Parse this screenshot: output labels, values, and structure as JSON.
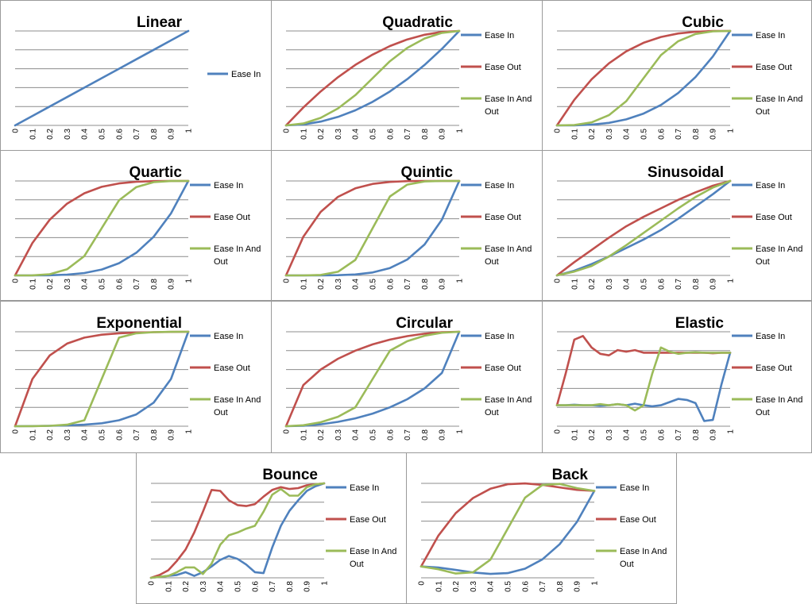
{
  "colors": {
    "ease_in": "#4f81bd",
    "ease_out": "#c0504d",
    "ease_in_out": "#9bbb59",
    "grid": "#8c8c8c"
  },
  "chart_data": [
    {
      "type": "line",
      "title": "Linear",
      "ylim": [
        0,
        1
      ],
      "grid": true,
      "legend": "right",
      "x": [
        0,
        0.1,
        0.2,
        0.3,
        0.4,
        0.5,
        0.6,
        0.7,
        0.8,
        0.9,
        1
      ],
      "series": [
        {
          "name": "Ease In",
          "values": [
            0,
            0.1,
            0.2,
            0.3,
            0.4,
            0.5,
            0.6,
            0.7,
            0.8,
            0.9,
            1
          ]
        }
      ]
    },
    {
      "type": "line",
      "title": "Quadratic",
      "ylim": [
        0,
        1
      ],
      "grid": true,
      "legend": "right",
      "x": [
        0,
        0.1,
        0.2,
        0.3,
        0.4,
        0.5,
        0.6,
        0.7,
        0.8,
        0.9,
        1
      ],
      "series": [
        {
          "name": "Ease In",
          "values": [
            0,
            0.01,
            0.04,
            0.09,
            0.16,
            0.25,
            0.36,
            0.49,
            0.64,
            0.81,
            1
          ]
        },
        {
          "name": "Ease Out",
          "values": [
            0,
            0.19,
            0.36,
            0.51,
            0.64,
            0.75,
            0.84,
            0.91,
            0.96,
            0.99,
            1
          ]
        },
        {
          "name": "Ease In And Out",
          "values": [
            0,
            0.02,
            0.08,
            0.18,
            0.32,
            0.5,
            0.68,
            0.82,
            0.92,
            0.98,
            1
          ]
        }
      ]
    },
    {
      "type": "line",
      "title": "Cubic",
      "ylim": [
        0,
        1
      ],
      "grid": true,
      "legend": "right",
      "x": [
        0,
        0.1,
        0.2,
        0.3,
        0.4,
        0.5,
        0.6,
        0.7,
        0.8,
        0.9,
        1
      ],
      "series": [
        {
          "name": "Ease In",
          "values": [
            0,
            0.001,
            0.008,
            0.027,
            0.064,
            0.125,
            0.216,
            0.343,
            0.512,
            0.729,
            1
          ]
        },
        {
          "name": "Ease Out",
          "values": [
            0,
            0.271,
            0.488,
            0.657,
            0.784,
            0.875,
            0.936,
            0.973,
            0.992,
            0.999,
            1
          ]
        },
        {
          "name": "Ease In And Out",
          "values": [
            0,
            0.004,
            0.032,
            0.108,
            0.256,
            0.5,
            0.744,
            0.892,
            0.968,
            0.996,
            1
          ]
        }
      ]
    },
    {
      "type": "line",
      "title": "Quartic",
      "ylim": [
        0,
        1
      ],
      "grid": true,
      "legend": "right",
      "x": [
        0,
        0.1,
        0.2,
        0.3,
        0.4,
        0.5,
        0.6,
        0.7,
        0.8,
        0.9,
        1
      ],
      "series": [
        {
          "name": "Ease In",
          "values": [
            0,
            0.0001,
            0.0016,
            0.0081,
            0.0256,
            0.0625,
            0.1296,
            0.2401,
            0.4096,
            0.6561,
            1
          ]
        },
        {
          "name": "Ease Out",
          "values": [
            0,
            0.344,
            0.59,
            0.76,
            0.87,
            0.938,
            0.974,
            0.992,
            0.998,
            1,
            1
          ]
        },
        {
          "name": "Ease In And Out",
          "values": [
            0,
            0.001,
            0.013,
            0.065,
            0.205,
            0.5,
            0.795,
            0.935,
            0.987,
            0.999,
            1
          ]
        }
      ]
    },
    {
      "type": "line",
      "title": "Quintic",
      "ylim": [
        0,
        1
      ],
      "grid": true,
      "legend": "right",
      "x": [
        0,
        0.1,
        0.2,
        0.3,
        0.4,
        0.5,
        0.6,
        0.7,
        0.8,
        0.9,
        1
      ],
      "series": [
        {
          "name": "Ease In",
          "values": [
            0,
            0,
            0.0003,
            0.0024,
            0.0102,
            0.0313,
            0.0778,
            0.1681,
            0.3277,
            0.5905,
            1
          ]
        },
        {
          "name": "Ease Out",
          "values": [
            0,
            0.41,
            0.672,
            0.832,
            0.922,
            0.969,
            0.99,
            0.998,
            1,
            1,
            1
          ]
        },
        {
          "name": "Ease In And Out",
          "values": [
            0,
            0,
            0.005,
            0.039,
            0.164,
            0.5,
            0.836,
            0.961,
            0.995,
            1,
            1
          ]
        }
      ]
    },
    {
      "type": "line",
      "title": "Sinusoidal",
      "ylim": [
        0,
        1
      ],
      "grid": true,
      "legend": "right",
      "x": [
        0,
        0.1,
        0.2,
        0.3,
        0.4,
        0.5,
        0.6,
        0.7,
        0.8,
        0.9,
        1
      ],
      "series": [
        {
          "name": "Ease In",
          "values": [
            0,
            0.05,
            0.12,
            0.2,
            0.29,
            0.38,
            0.48,
            0.6,
            0.73,
            0.86,
            1
          ]
        },
        {
          "name": "Ease Out",
          "values": [
            0,
            0.14,
            0.27,
            0.4,
            0.52,
            0.62,
            0.71,
            0.8,
            0.88,
            0.95,
            1
          ]
        },
        {
          "name": "Ease In And Out",
          "values": [
            0,
            0.04,
            0.1,
            0.2,
            0.32,
            0.45,
            0.58,
            0.71,
            0.83,
            0.93,
            1
          ]
        }
      ]
    },
    {
      "type": "line",
      "title": "Exponential",
      "ylim": [
        0,
        1
      ],
      "grid": true,
      "legend": "right",
      "x": [
        0,
        0.1,
        0.2,
        0.3,
        0.4,
        0.5,
        0.6,
        0.7,
        0.8,
        0.9,
        1
      ],
      "series": [
        {
          "name": "Ease In",
          "values": [
            0,
            0.002,
            0.004,
            0.008,
            0.016,
            0.031,
            0.063,
            0.125,
            0.25,
            0.5,
            1
          ]
        },
        {
          "name": "Ease Out",
          "values": [
            0,
            0.5,
            0.75,
            0.875,
            0.938,
            0.969,
            0.984,
            0.992,
            0.996,
            0.998,
            1
          ]
        },
        {
          "name": "Ease In And Out",
          "values": [
            0,
            0.001,
            0.004,
            0.016,
            0.063,
            0.5,
            0.938,
            0.984,
            0.996,
            0.999,
            1
          ]
        }
      ]
    },
    {
      "type": "line",
      "title": "Circular",
      "ylim": [
        0,
        1
      ],
      "grid": true,
      "legend": "right",
      "x": [
        0,
        0.1,
        0.2,
        0.3,
        0.4,
        0.5,
        0.6,
        0.7,
        0.8,
        0.9,
        1
      ],
      "series": [
        {
          "name": "Ease In",
          "values": [
            0,
            0.005,
            0.02,
            0.046,
            0.083,
            0.134,
            0.2,
            0.286,
            0.4,
            0.564,
            1
          ]
        },
        {
          "name": "Ease Out",
          "values": [
            0,
            0.436,
            0.6,
            0.714,
            0.8,
            0.866,
            0.917,
            0.954,
            0.98,
            0.995,
            1
          ]
        },
        {
          "name": "Ease In And Out",
          "values": [
            0,
            0.01,
            0.042,
            0.1,
            0.2,
            0.5,
            0.8,
            0.9,
            0.958,
            0.99,
            1
          ]
        }
      ]
    },
    {
      "type": "line",
      "title": "Elastic",
      "ylim": [
        -0.4,
        1.4
      ],
      "grid": true,
      "legend": "right",
      "x": [
        0,
        0.05,
        0.1,
        0.15,
        0.2,
        0.25,
        0.3,
        0.35,
        0.4,
        0.45,
        0.5,
        0.55,
        0.6,
        0.65,
        0.7,
        0.75,
        0.8,
        0.85,
        0.9,
        0.95,
        1
      ],
      "series": [
        {
          "name": "Ease In",
          "values": [
            0,
            0,
            0.01,
            0,
            0,
            -0.01,
            0,
            0.02,
            0,
            0.03,
            0,
            -0.02,
            0,
            0.06,
            0.12,
            0.1,
            0.04,
            -0.3,
            -0.28,
            0.4,
            1
          ]
        },
        {
          "name": "Ease Out",
          "values": [
            0,
            0.6,
            1.25,
            1.32,
            1.1,
            0.98,
            0.95,
            1.05,
            1.02,
            1.05,
            1,
            1,
            1,
            1,
            1,
            1,
            1,
            1,
            0.99,
            1,
            1
          ]
        },
        {
          "name": "Ease In And Out",
          "values": [
            0,
            0,
            0,
            0,
            0,
            0.02,
            0,
            0.02,
            0,
            -0.1,
            0,
            0.6,
            1.1,
            1.02,
            0.98,
            1,
            1.01,
            1,
            1,
            1,
            1
          ]
        }
      ]
    },
    {
      "type": "line",
      "title": "Bounce",
      "ylim": [
        0,
        1
      ],
      "grid": true,
      "legend": "right",
      "x": [
        0,
        0.05,
        0.1,
        0.15,
        0.2,
        0.25,
        0.3,
        0.35,
        0.4,
        0.45,
        0.5,
        0.55,
        0.6,
        0.65,
        0.7,
        0.75,
        0.8,
        0.85,
        0.9,
        0.95,
        1
      ],
      "series": [
        {
          "name": "Ease In",
          "values": [
            0,
            0.01,
            0.02,
            0.03,
            0.06,
            0.02,
            0.06,
            0.12,
            0.19,
            0.23,
            0.2,
            0.14,
            0.06,
            0.05,
            0.32,
            0.55,
            0.71,
            0.82,
            0.92,
            0.97,
            1
          ]
        },
        {
          "name": "Ease Out",
          "values": [
            0,
            0.03,
            0.08,
            0.18,
            0.3,
            0.48,
            0.7,
            0.93,
            0.92,
            0.82,
            0.77,
            0.76,
            0.78,
            0.86,
            0.93,
            0.96,
            0.94,
            0.95,
            0.98,
            0.99,
            1
          ]
        },
        {
          "name": "Ease In And Out",
          "values": [
            0,
            0.01,
            0.02,
            0.06,
            0.11,
            0.11,
            0.04,
            0.15,
            0.35,
            0.45,
            0.48,
            0.52,
            0.55,
            0.7,
            0.88,
            0.94,
            0.87,
            0.87,
            0.96,
            0.99,
            1
          ]
        }
      ]
    },
    {
      "type": "line",
      "title": "Back",
      "ylim": [
        -0.15,
        1.1
      ],
      "grid": true,
      "legend": "right",
      "x": [
        0,
        0.1,
        0.2,
        0.3,
        0.4,
        0.5,
        0.6,
        0.7,
        0.8,
        0.9,
        1
      ],
      "series": [
        {
          "name": "Ease In",
          "values": [
            0,
            -0.014,
            -0.046,
            -0.08,
            -0.099,
            -0.088,
            -0.029,
            0.094,
            0.294,
            0.591,
            1
          ]
        },
        {
          "name": "Ease Out",
          "values": [
            0,
            0.409,
            0.706,
            0.906,
            1.029,
            1.088,
            1.099,
            1.08,
            1.046,
            1.014,
            1
          ]
        },
        {
          "name": "Ease In And Out",
          "values": [
            0,
            -0.037,
            -0.093,
            -0.078,
            0.09,
            0.5,
            0.91,
            1.078,
            1.093,
            1.037,
            1
          ]
        }
      ]
    }
  ]
}
